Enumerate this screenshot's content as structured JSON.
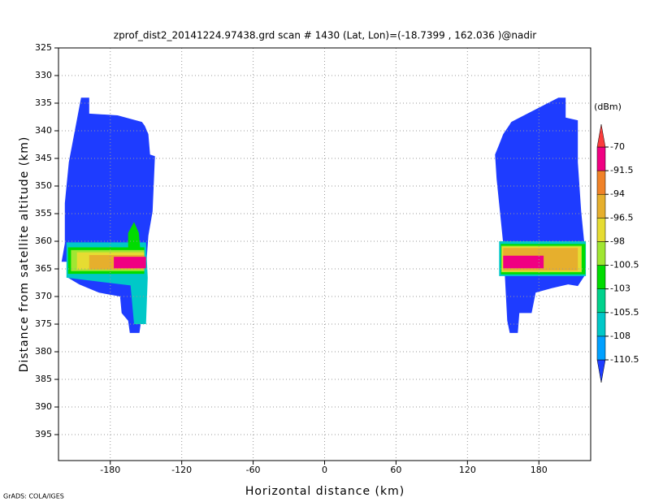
{
  "chart_data": {
    "type": "filled_contour",
    "title": "zprof_dist2_20141224.97438.grd  scan # 1430  (Lat, Lon)=(-18.7399 , 162.036 )@nadir",
    "x_label": "Horizontal distance (km)",
    "y_label": "Distance from satellite altitude (km)",
    "credit": "GrADS: COLA/IGES",
    "xlim": [
      -223.5,
      223.5
    ],
    "xticks": [
      -180,
      -120,
      -60,
      0,
      60,
      120,
      180
    ],
    "ylim": [
      325,
      399.7
    ],
    "y_inverted": true,
    "yticks": [
      325,
      330,
      335,
      340,
      345,
      350,
      355,
      360,
      365,
      370,
      375,
      380,
      385,
      390,
      395
    ],
    "grid": true,
    "colorbar": {
      "unit": "(dBm)",
      "levels": [
        -110.5,
        -108,
        -105.5,
        -103,
        -100.5,
        -98,
        -96.5,
        -94,
        -91.5,
        -70
      ],
      "colors": [
        "#1e3cff",
        "#00a0ff",
        "#00c8c8",
        "#00d28c",
        "#00dc00",
        "#a0e632",
        "#e6dc32",
        "#e6af2d",
        "#f08228",
        "#f00082",
        "#fa3c3c"
      ]
    },
    "regions": [
      {
        "value": -112,
        "points": [
          [
            -204.5,
            334
          ],
          [
            -197.7,
            334
          ],
          [
            -197.7,
            336.9
          ],
          [
            -173.9,
            337.2
          ],
          [
            -153.4,
            338.4
          ],
          [
            -151,
            339.1
          ],
          [
            -148,
            340.6
          ],
          [
            -146.6,
            344.3
          ],
          [
            -142.5,
            344.6
          ],
          [
            -144.5,
            354.6
          ],
          [
            -148,
            359
          ],
          [
            -150,
            364.9
          ],
          [
            -151.4,
            370.7
          ],
          [
            -154.1,
            374.4
          ],
          [
            -155.5,
            376.6
          ],
          [
            -163.6,
            376.6
          ],
          [
            -165,
            374.4
          ],
          [
            -170.5,
            373
          ],
          [
            -171.8,
            370
          ],
          [
            -189.5,
            369.3
          ],
          [
            -206.1,
            367.8
          ],
          [
            -215.5,
            366.6
          ],
          [
            -215.5,
            363.7
          ],
          [
            -220.9,
            363.7
          ],
          [
            -218.2,
            360.4
          ],
          [
            -218.2,
            353.1
          ],
          [
            -214.8,
            345.7
          ]
        ]
      },
      {
        "value": -107,
        "points": [
          [
            -216.8,
            360.2
          ],
          [
            -150,
            360.2
          ],
          [
            -148.6,
            366.6
          ],
          [
            -150,
            375
          ],
          [
            -160,
            375
          ],
          [
            -163,
            368
          ],
          [
            -216.8,
            366.6
          ]
        ]
      },
      {
        "value": -102,
        "points": [
          [
            -215.5,
            361.1
          ],
          [
            -165,
            361.1
          ],
          [
            -165,
            358.5
          ],
          [
            -160,
            356.5
          ],
          [
            -156,
            358.5
          ],
          [
            -155,
            361.1
          ],
          [
            -151.4,
            361.1
          ],
          [
            -151.4,
            365.9
          ],
          [
            -215.5,
            365.9
          ]
        ]
      },
      {
        "value": -99,
        "points": [
          [
            -213,
            361.6
          ],
          [
            -151.4,
            361.6
          ],
          [
            -151.4,
            365.4
          ],
          [
            -213,
            365.4
          ]
        ]
      },
      {
        "value": -97,
        "points": [
          [
            -208,
            362
          ],
          [
            -151.4,
            362
          ],
          [
            -151.4,
            365.1
          ],
          [
            -208,
            365.1
          ]
        ]
      },
      {
        "value": -95,
        "points": [
          [
            -197.7,
            362.5
          ],
          [
            -151.4,
            362.5
          ],
          [
            -151.4,
            365.1
          ],
          [
            -197.7,
            365.1
          ]
        ]
      },
      {
        "value": -90,
        "points": [
          [
            -177,
            362.8
          ],
          [
            -150,
            362.8
          ],
          [
            -150,
            364.9
          ],
          [
            -177,
            364.9
          ]
        ]
      },
      {
        "value": -112,
        "points": [
          [
            196.4,
            334
          ],
          [
            202.5,
            334
          ],
          [
            202.5,
            337.6
          ],
          [
            212.7,
            338.1
          ],
          [
            212.7,
            345.7
          ],
          [
            215.5,
            354.6
          ],
          [
            218.2,
            360.4
          ],
          [
            218.2,
            366.3
          ],
          [
            212.7,
            368.1
          ],
          [
            204.5,
            367.8
          ],
          [
            190.9,
            368.5
          ],
          [
            177.3,
            369.3
          ],
          [
            173.9,
            373
          ],
          [
            163.6,
            373
          ],
          [
            162.3,
            376.6
          ],
          [
            155.5,
            376.6
          ],
          [
            153.4,
            374.4
          ],
          [
            151.4,
            366.3
          ],
          [
            150,
            360.4
          ],
          [
            147.3,
            354.6
          ],
          [
            144.5,
            348.7
          ],
          [
            143.2,
            344.3
          ],
          [
            146.6,
            342.5
          ],
          [
            150,
            340.6
          ],
          [
            154.8,
            339.1
          ],
          [
            156.8,
            338.4
          ]
        ]
      },
      {
        "value": -107,
        "points": [
          [
            146.6,
            360
          ],
          [
            219.5,
            360
          ],
          [
            219.5,
            366.3
          ],
          [
            146.6,
            366.3
          ]
        ]
      },
      {
        "value": -102,
        "points": [
          [
            148,
            360.5
          ],
          [
            219,
            360.5
          ],
          [
            219,
            366
          ],
          [
            148,
            366
          ]
        ]
      },
      {
        "value": -99,
        "points": [
          [
            148.5,
            360.8
          ],
          [
            216,
            360.8
          ],
          [
            216,
            365.6
          ],
          [
            148.5,
            365.6
          ]
        ]
      },
      {
        "value": -97,
        "points": [
          [
            149,
            361
          ],
          [
            215.5,
            361
          ],
          [
            215.5,
            365.5
          ],
          [
            149,
            365.5
          ]
        ]
      },
      {
        "value": -95,
        "points": [
          [
            150,
            361.2
          ],
          [
            212.7,
            361.2
          ],
          [
            212.7,
            365.3
          ],
          [
            150,
            365.3
          ]
        ]
      },
      {
        "value": -90,
        "points": [
          [
            150,
            362.6
          ],
          [
            184,
            362.6
          ],
          [
            184,
            364.9
          ],
          [
            150,
            364.9
          ]
        ]
      }
    ]
  }
}
